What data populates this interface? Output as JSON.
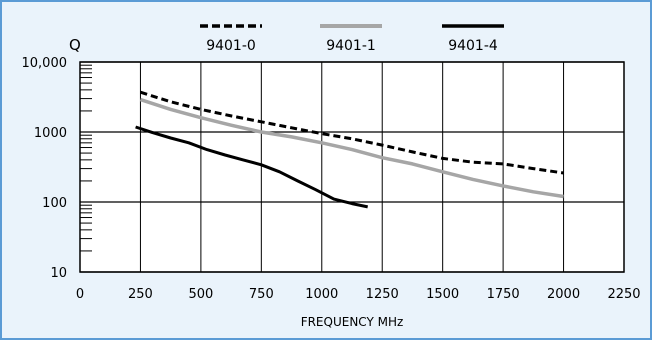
{
  "chart_data": {
    "type": "line",
    "title": "",
    "xlabel": "FREQUENCY MHz",
    "ylabel": "Q",
    "x_scale": "linear",
    "y_scale": "log",
    "xlim": [
      0,
      2250
    ],
    "ylim": [
      10,
      10000
    ],
    "x_ticks": [
      0,
      250,
      500,
      750,
      1000,
      1250,
      1500,
      1750,
      2000,
      2250
    ],
    "x_tick_labels": [
      "0",
      "250",
      "500",
      "750",
      "1000",
      "1250",
      "1500",
      "1750",
      "2000",
      "2250"
    ],
    "y_ticks": [
      10,
      100,
      1000,
      10000
    ],
    "y_tick_labels": [
      "10",
      "100",
      "1000",
      "10,000"
    ],
    "grid": true,
    "legend_position": "top",
    "series": [
      {
        "name": "9401-0",
        "color": "#000000",
        "style": "dashed",
        "x": [
          250,
          375,
          500,
          625,
          750,
          875,
          1000,
          1125,
          1250,
          1375,
          1500,
          1625,
          1750,
          1875,
          2000
        ],
        "y": [
          3700,
          2700,
          2100,
          1700,
          1400,
          1150,
          950,
          800,
          650,
          520,
          420,
          370,
          350,
          300,
          260
        ]
      },
      {
        "name": "9401-1",
        "color": "#a6a6a6",
        "style": "solid",
        "x": [
          250,
          375,
          500,
          625,
          750,
          875,
          1000,
          1125,
          1250,
          1375,
          1500,
          1625,
          1750,
          1875,
          2000
        ],
        "y": [
          2900,
          2100,
          1600,
          1250,
          1000,
          850,
          700,
          560,
          430,
          350,
          270,
          210,
          170,
          140,
          120
        ]
      },
      {
        "name": "9401-4",
        "color": "#000000",
        "style": "solid",
        "x": [
          230,
          300,
          375,
          450,
          525,
          600,
          675,
          750,
          825,
          900,
          975,
          1050,
          1125,
          1190
        ],
        "y": [
          1180,
          980,
          820,
          700,
          560,
          470,
          400,
          340,
          270,
          200,
          150,
          110,
          95,
          85
        ]
      }
    ]
  }
}
